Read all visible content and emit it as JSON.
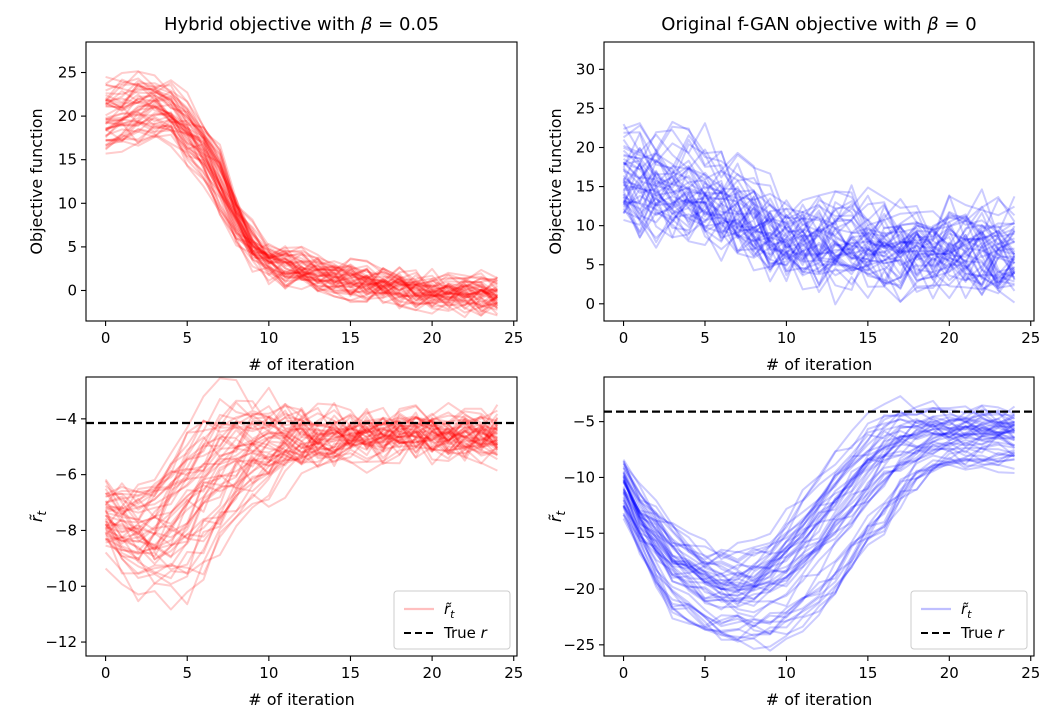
{
  "chart_data": [
    {
      "id": "tl",
      "type": "line",
      "title_text": "Hybrid objective with ",
      "title_math": "β = 0.05",
      "xlabel": "# of iteration",
      "ylabel": "Objective function",
      "xlim": [
        -1.2,
        25.2
      ],
      "ylim": [
        -3.5,
        28.5
      ],
      "xticks": [
        0,
        5,
        10,
        15,
        20,
        25
      ],
      "yticks": [
        0,
        5,
        10,
        15,
        20,
        25
      ],
      "color": "#ff0000",
      "alpha": 0.2,
      "legend": null,
      "n_runs": 50,
      "median_curve": [
        19.5,
        20,
        20.5,
        20.6,
        20.2,
        18,
        16,
        12.5,
        8,
        5,
        3.3,
        2.6,
        2.2,
        1.8,
        1.4,
        1.1,
        0.8,
        0.5,
        0.2,
        0,
        -0.2,
        -0.3,
        -0.4,
        -0.5,
        -0.6
      ],
      "spread": [
        3.5,
        3.5,
        3.5,
        3.5,
        3.2,
        3,
        3,
        3,
        2.4,
        1.5,
        1.2,
        1.1,
        1.1,
        1.1,
        1.1,
        1.1,
        1.1,
        1.1,
        1.1,
        1.1,
        1.1,
        1.1,
        1.1,
        1.1,
        1.1
      ],
      "noise": 1.3
    },
    {
      "id": "tr",
      "type": "line",
      "title_text": "Original f-GAN objective with ",
      "title_math": "β = 0",
      "xlabel": "# of iteration",
      "ylabel": "Objective function",
      "xlim": [
        -1.2,
        25.2
      ],
      "ylim": [
        -2.2,
        33.5
      ],
      "xticks": [
        0,
        5,
        10,
        15,
        20,
        25
      ],
      "yticks": [
        0,
        5,
        10,
        15,
        20,
        25,
        30
      ],
      "color": "#0000ff",
      "alpha": 0.2,
      "legend": null,
      "n_runs": 50,
      "median_curve": [
        17,
        16.5,
        16,
        15.5,
        15,
        14.5,
        13.5,
        12.5,
        11,
        10,
        9,
        8.5,
        8.3,
        8.1,
        8,
        7.9,
        7.8,
        7.7,
        7.6,
        7.5,
        7.5,
        7.5,
        7.5,
        7.5,
        7.5
      ],
      "spread": [
        5,
        5,
        5,
        5,
        5,
        5,
        4.5,
        4.5,
        4,
        4,
        3.5,
        3.5,
        3.5,
        3.5,
        3.5,
        3.5,
        3.5,
        3.5,
        3.5,
        3.5,
        3.5,
        3.5,
        3.5,
        3.5,
        3.5
      ],
      "noise": 3.2
    },
    {
      "id": "bl",
      "type": "line",
      "title_text": "",
      "title_math": "",
      "xlabel": "# of iteration",
      "ylabel": "r̃_t",
      "xlim": [
        -1.2,
        25.2
      ],
      "ylim": [
        -12.5,
        -2.5
      ],
      "xticks": [
        0,
        5,
        10,
        15,
        20,
        25
      ],
      "yticks": [
        -12,
        -10,
        -8,
        -6,
        -4
      ],
      "color": "#ff0000",
      "alpha": 0.2,
      "true_r": -4.15,
      "legend": {
        "series_label": "r̃_t",
        "hline_label": "True r",
        "position": "lower right"
      },
      "n_runs": 50,
      "median_curve": [
        -7.5,
        -8,
        -8.2,
        -8.2,
        -7.8,
        -7.3,
        -6.6,
        -6,
        -5.6,
        -5.3,
        -5.1,
        -4.9,
        -4.8,
        -4.75,
        -4.7,
        -4.7,
        -4.65,
        -4.65,
        -4.6,
        -4.6,
        -4.6,
        -4.6,
        -4.6,
        -4.6,
        -4.6
      ],
      "spread": [
        1.2,
        1.6,
        2,
        2.3,
        2.8,
        3.2,
        3,
        2.8,
        2.5,
        2,
        1.6,
        1.3,
        1,
        0.8,
        0.6,
        0.5,
        0.45,
        0.4,
        0.4,
        0.4,
        0.4,
        0.4,
        0.4,
        0.4,
        0.4
      ],
      "noise": 0.6
    },
    {
      "id": "br",
      "type": "line",
      "title_text": "",
      "title_math": "",
      "xlabel": "# of iteration",
      "ylabel": "r̃_t",
      "xlim": [
        -1.2,
        25.2
      ],
      "ylim": [
        -26,
        -1
      ],
      "xticks": [
        0,
        5,
        10,
        15,
        20,
        25
      ],
      "yticks": [
        -25,
        -20,
        -15,
        -10,
        -5
      ],
      "color": "#0000ff",
      "alpha": 0.2,
      "true_r": -4.1,
      "legend": {
        "series_label": "r̃_t",
        "hline_label": "True r",
        "position": "lower right"
      },
      "n_runs": 50,
      "median_curve": [
        -11,
        -14,
        -16,
        -18,
        -19,
        -20,
        -20.5,
        -20.7,
        -20.5,
        -19.8,
        -18.8,
        -17.5,
        -16,
        -14.3,
        -12.5,
        -10.8,
        -9.3,
        -8,
        -7.2,
        -6.8,
        -6.6,
        -6.5,
        -6.4,
        -6.4,
        -6.4
      ],
      "spread": [
        2.5,
        3,
        3.5,
        4,
        4,
        4,
        4,
        4,
        4.5,
        5,
        5.5,
        6,
        6.5,
        6.5,
        6.5,
        6,
        5.5,
        4.5,
        3.5,
        3,
        2.5,
        2.5,
        2.5,
        2.5,
        2.5
      ],
      "noise": 0.8
    }
  ]
}
